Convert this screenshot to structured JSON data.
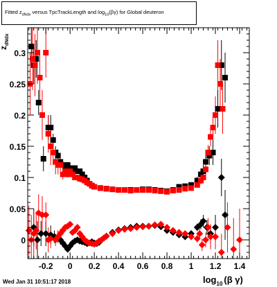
{
  "title": {
    "part1": "Fitted z",
    "sub1": "dNdx",
    "part2": " versus TpcTrackLength and log",
    "sub2": "10",
    "part3": "(βγ) for Global deuteron"
  },
  "footer_text": "Wed Jan 31 10:51:17 2018",
  "ylabel_main": "z",
  "ylabel_sub": "dNdx",
  "xlabel_main": "log",
  "xlabel_sub": "10",
  "xlabel_tail": "(β γ)",
  "colors": {
    "black_series": "#000000",
    "red_series": "#ff0000",
    "axis": "#000000"
  },
  "chart_data": {
    "type": "scatter",
    "xlim": [
      -0.35,
      1.48
    ],
    "ylim": [
      -0.03,
      0.34
    ],
    "x_ticks": [
      {
        "v": -0.2,
        "label": "-0.2"
      },
      {
        "v": 0,
        "label": "0"
      },
      {
        "v": 0.2,
        "label": "0.2"
      },
      {
        "v": 0.4,
        "label": "0.4"
      },
      {
        "v": 0.6,
        "label": "0.6"
      },
      {
        "v": 0.8,
        "label": "0.8"
      },
      {
        "v": 1.0,
        "label": "1"
      },
      {
        "v": 1.2,
        "label": "1.2"
      },
      {
        "v": 1.4,
        "label": "1.4"
      }
    ],
    "y_ticks": [
      {
        "v": 0,
        "label": "0"
      },
      {
        "v": 0.05,
        "label": "0.05"
      },
      {
        "v": 0.1,
        "label": "0.1"
      },
      {
        "v": 0.15,
        "label": "0.15"
      },
      {
        "v": 0.2,
        "label": "0.2"
      },
      {
        "v": 0.25,
        "label": "0.25"
      },
      {
        "v": 0.3,
        "label": "0.3"
      }
    ],
    "series": [
      {
        "marker": "square",
        "color": "#000000",
        "points": [
          [
            -0.32,
            0.31,
            0.03
          ],
          [
            -0.3,
            0.28,
            0.03
          ],
          [
            -0.28,
            0.29,
            0.03
          ],
          [
            -0.26,
            0.22,
            0.02
          ],
          [
            -0.22,
            0.13,
            0.02
          ],
          [
            -0.18,
            0.18,
            0.02
          ],
          [
            -0.16,
            0.18,
            0.02
          ],
          [
            -0.14,
            0.16,
            0.01
          ],
          [
            -0.12,
            0.14,
            0.01
          ],
          [
            -0.1,
            0.135,
            0.01
          ],
          [
            -0.08,
            0.125,
            0.005
          ],
          [
            -0.06,
            0.12,
            0.005
          ],
          [
            -0.04,
            0.115,
            0.004
          ],
          [
            -0.02,
            0.12,
            0.004
          ],
          [
            0.0,
            0.115,
            0.003
          ],
          [
            0.02,
            0.11,
            0.003
          ],
          [
            0.04,
            0.115,
            0.003
          ],
          [
            0.06,
            0.11,
            0.003
          ],
          [
            0.08,
            0.11,
            0.002
          ],
          [
            0.1,
            0.105,
            0.002
          ],
          [
            0.12,
            0.1,
            0.002
          ],
          [
            0.14,
            0.095,
            0.002
          ],
          [
            0.16,
            0.09,
            0.002
          ],
          [
            0.18,
            0.087,
            0.002
          ],
          [
            0.2,
            0.085,
            0.002
          ],
          [
            0.25,
            0.083,
            0.002
          ],
          [
            0.3,
            0.082,
            0.002
          ],
          [
            0.35,
            0.081,
            0.002
          ],
          [
            0.4,
            0.08,
            0.002
          ],
          [
            0.45,
            0.08,
            0.002
          ],
          [
            0.5,
            0.08,
            0.002
          ],
          [
            0.55,
            0.08,
            0.002
          ],
          [
            0.6,
            0.081,
            0.002
          ],
          [
            0.65,
            0.081,
            0.002
          ],
          [
            0.7,
            0.08,
            0.002
          ],
          [
            0.75,
            0.079,
            0.002
          ],
          [
            0.8,
            0.078,
            0.002
          ],
          [
            0.85,
            0.08,
            0.002
          ],
          [
            0.9,
            0.085,
            0.003
          ],
          [
            0.95,
            0.086,
            0.004
          ],
          [
            1.0,
            0.088,
            0.004
          ],
          [
            1.05,
            0.095,
            0.006
          ],
          [
            1.08,
            0.105,
            0.008
          ],
          [
            1.1,
            0.11,
            0.01
          ],
          [
            1.12,
            0.125,
            0.012
          ],
          [
            1.15,
            0.135,
            0.015
          ],
          [
            1.18,
            0.14,
            0.02
          ],
          [
            1.22,
            0.21,
            0.03
          ],
          [
            1.25,
            0.28,
            0.04
          ],
          [
            1.28,
            0.26,
            0.04
          ]
        ]
      },
      {
        "marker": "square",
        "color": "#ff0000",
        "points": [
          [
            -0.33,
            0.25,
            0.05
          ],
          [
            -0.31,
            0.29,
            0.05
          ],
          [
            -0.29,
            0.28,
            0.05
          ],
          [
            -0.27,
            0.3,
            0.05
          ],
          [
            -0.25,
            0.26,
            0.04
          ],
          [
            -0.23,
            0.2,
            0.04
          ],
          [
            -0.2,
            0.3,
            0.04
          ],
          [
            -0.18,
            0.17,
            0.03
          ],
          [
            -0.16,
            0.15,
            0.03
          ],
          [
            -0.14,
            0.14,
            0.02
          ],
          [
            -0.12,
            0.125,
            0.02
          ],
          [
            -0.1,
            0.12,
            0.015
          ],
          [
            -0.08,
            0.12,
            0.01
          ],
          [
            -0.06,
            0.105,
            0.008
          ],
          [
            -0.04,
            0.11,
            0.006
          ],
          [
            -0.02,
            0.105,
            0.005
          ],
          [
            0.0,
            0.11,
            0.004
          ],
          [
            0.02,
            0.105,
            0.004
          ],
          [
            0.04,
            0.1,
            0.003
          ],
          [
            0.06,
            0.1,
            0.003
          ],
          [
            0.08,
            0.098,
            0.003
          ],
          [
            0.1,
            0.097,
            0.002
          ],
          [
            0.12,
            0.095,
            0.002
          ],
          [
            0.14,
            0.092,
            0.002
          ],
          [
            0.16,
            0.09,
            0.002
          ],
          [
            0.18,
            0.087,
            0.002
          ],
          [
            0.2,
            0.085,
            0.002
          ],
          [
            0.25,
            0.083,
            0.002
          ],
          [
            0.3,
            0.082,
            0.002
          ],
          [
            0.35,
            0.081,
            0.002
          ],
          [
            0.4,
            0.08,
            0.002
          ],
          [
            0.45,
            0.08,
            0.002
          ],
          [
            0.5,
            0.079,
            0.002
          ],
          [
            0.55,
            0.08,
            0.002
          ],
          [
            0.6,
            0.08,
            0.002
          ],
          [
            0.65,
            0.08,
            0.002
          ],
          [
            0.7,
            0.079,
            0.002
          ],
          [
            0.75,
            0.078,
            0.002
          ],
          [
            0.8,
            0.077,
            0.002
          ],
          [
            0.85,
            0.079,
            0.002
          ],
          [
            0.9,
            0.08,
            0.002
          ],
          [
            0.95,
            0.082,
            0.003
          ],
          [
            1.0,
            0.083,
            0.003
          ],
          [
            1.05,
            0.088,
            0.004
          ],
          [
            1.08,
            0.095,
            0.006
          ],
          [
            1.1,
            0.1,
            0.008
          ],
          [
            1.12,
            0.113,
            0.01
          ],
          [
            1.14,
            0.14,
            0.012
          ],
          [
            1.16,
            0.165,
            0.015
          ],
          [
            1.18,
            0.18,
            0.02
          ],
          [
            1.2,
            0.2,
            0.03
          ],
          [
            1.22,
            0.28,
            0.04
          ],
          [
            1.24,
            0.25,
            0.04
          ],
          [
            1.26,
            0.21,
            0.04
          ]
        ]
      },
      {
        "marker": "diamond",
        "color": "#000000",
        "points": [
          [
            -0.3,
            0.02,
            0.03
          ],
          [
            -0.27,
            0.0,
            0.03
          ],
          [
            -0.24,
            0.01,
            0.02
          ],
          [
            -0.2,
            0.01,
            0.02
          ],
          [
            -0.16,
            0.008,
            0.015
          ],
          [
            -0.13,
            0.005,
            0.01
          ],
          [
            -0.1,
            0.005,
            0.01
          ],
          [
            -0.08,
            0.0,
            0.008
          ],
          [
            -0.06,
            -0.005,
            0.006
          ],
          [
            -0.04,
            -0.01,
            0.005
          ],
          [
            -0.02,
            -0.015,
            0.004
          ],
          [
            0.0,
            -0.01,
            0.003
          ],
          [
            0.02,
            -0.005,
            0.003
          ],
          [
            0.04,
            -0.002,
            0.003
          ],
          [
            0.06,
            0.0,
            0.002
          ],
          [
            0.08,
            -0.002,
            0.002
          ],
          [
            0.1,
            -0.003,
            0.002
          ],
          [
            0.12,
            -0.004,
            0.002
          ],
          [
            0.14,
            -0.006,
            0.002
          ],
          [
            0.16,
            -0.005,
            0.002
          ],
          [
            0.18,
            -0.003,
            0.002
          ],
          [
            0.2,
            -0.005,
            0.002
          ],
          [
            0.22,
            -0.006,
            0.002
          ],
          [
            0.24,
            -0.004,
            0.002
          ],
          [
            0.26,
            0.0,
            0.002
          ],
          [
            0.28,
            0.003,
            0.002
          ],
          [
            0.3,
            0.006,
            0.002
          ],
          [
            0.35,
            0.012,
            0.002
          ],
          [
            0.4,
            0.016,
            0.002
          ],
          [
            0.45,
            0.018,
            0.002
          ],
          [
            0.5,
            0.02,
            0.002
          ],
          [
            0.55,
            0.022,
            0.002
          ],
          [
            0.6,
            0.022,
            0.002
          ],
          [
            0.65,
            0.022,
            0.002
          ],
          [
            0.7,
            0.023,
            0.002
          ],
          [
            0.75,
            0.021,
            0.002
          ],
          [
            0.8,
            0.015,
            0.002
          ],
          [
            0.85,
            0.012,
            0.003
          ],
          [
            0.9,
            0.008,
            0.003
          ],
          [
            0.95,
            0.005,
            0.004
          ],
          [
            1.0,
            0.01,
            0.004
          ],
          [
            1.05,
            0.02,
            0.006
          ],
          [
            1.08,
            0.025,
            0.008
          ],
          [
            1.1,
            0.03,
            0.01
          ],
          [
            1.13,
            0.02,
            0.012
          ],
          [
            1.16,
            0.01,
            0.015
          ],
          [
            1.2,
            0.02,
            0.02
          ],
          [
            1.25,
            0.1,
            0.03
          ],
          [
            1.28,
            0.04,
            0.04
          ]
        ]
      },
      {
        "marker": "diamond",
        "color": "#ff0000",
        "points": [
          [
            -0.34,
            0.015,
            0.04
          ],
          [
            -0.32,
            0.0,
            0.04
          ],
          [
            -0.3,
            0.01,
            0.04
          ],
          [
            -0.28,
            0.015,
            0.03
          ],
          [
            -0.26,
            0.043,
            0.03
          ],
          [
            -0.23,
            0.04,
            0.03
          ],
          [
            -0.2,
            0.04,
            0.02
          ],
          [
            -0.18,
            0.0,
            0.02
          ],
          [
            -0.16,
            0.002,
            0.015
          ],
          [
            -0.12,
            0.0,
            0.01
          ],
          [
            -0.1,
            0.005,
            0.01
          ],
          [
            -0.08,
            0.01,
            0.008
          ],
          [
            -0.06,
            0.015,
            0.006
          ],
          [
            -0.04,
            0.02,
            0.005
          ],
          [
            -0.02,
            0.022,
            0.004
          ],
          [
            0.0,
            0.025,
            0.004
          ],
          [
            0.02,
            0.012,
            0.003
          ],
          [
            0.04,
            0.015,
            0.003
          ],
          [
            0.06,
            0.02,
            0.003
          ],
          [
            0.08,
            0.01,
            0.002
          ],
          [
            0.1,
            0.005,
            0.002
          ],
          [
            0.12,
            0.0,
            0.002
          ],
          [
            0.14,
            -0.003,
            0.002
          ],
          [
            0.16,
            -0.005,
            0.002
          ],
          [
            0.18,
            -0.006,
            0.002
          ],
          [
            0.2,
            -0.007,
            0.002
          ],
          [
            0.22,
            -0.005,
            0.002
          ],
          [
            0.24,
            -0.002,
            0.002
          ],
          [
            0.26,
            0.0,
            0.002
          ],
          [
            0.28,
            0.003,
            0.002
          ],
          [
            0.3,
            0.006,
            0.002
          ],
          [
            0.35,
            0.01,
            0.002
          ],
          [
            0.4,
            0.015,
            0.002
          ],
          [
            0.45,
            0.017,
            0.002
          ],
          [
            0.5,
            0.018,
            0.002
          ],
          [
            0.55,
            0.02,
            0.002
          ],
          [
            0.6,
            0.021,
            0.002
          ],
          [
            0.65,
            0.022,
            0.002
          ],
          [
            0.7,
            0.024,
            0.002
          ],
          [
            0.75,
            0.025,
            0.002
          ],
          [
            0.8,
            0.02,
            0.002
          ],
          [
            0.85,
            0.015,
            0.003
          ],
          [
            0.9,
            0.012,
            0.003
          ],
          [
            0.95,
            0.01,
            0.004
          ],
          [
            1.0,
            0.005,
            0.004
          ],
          [
            1.05,
            0.002,
            0.006
          ],
          [
            1.07,
            0.01,
            0.008
          ],
          [
            1.09,
            -0.008,
            0.01
          ],
          [
            1.12,
            0.0,
            0.012
          ],
          [
            1.14,
            0.02,
            0.015
          ],
          [
            1.16,
            0.005,
            0.02
          ],
          [
            1.2,
            0.005,
            0.02
          ],
          [
            1.25,
            -0.02,
            0.03
          ],
          [
            1.3,
            0.02,
            0.04
          ],
          [
            1.35,
            -0.015,
            0.05
          ],
          [
            1.4,
            0.0,
            0.05
          ]
        ]
      }
    ]
  }
}
